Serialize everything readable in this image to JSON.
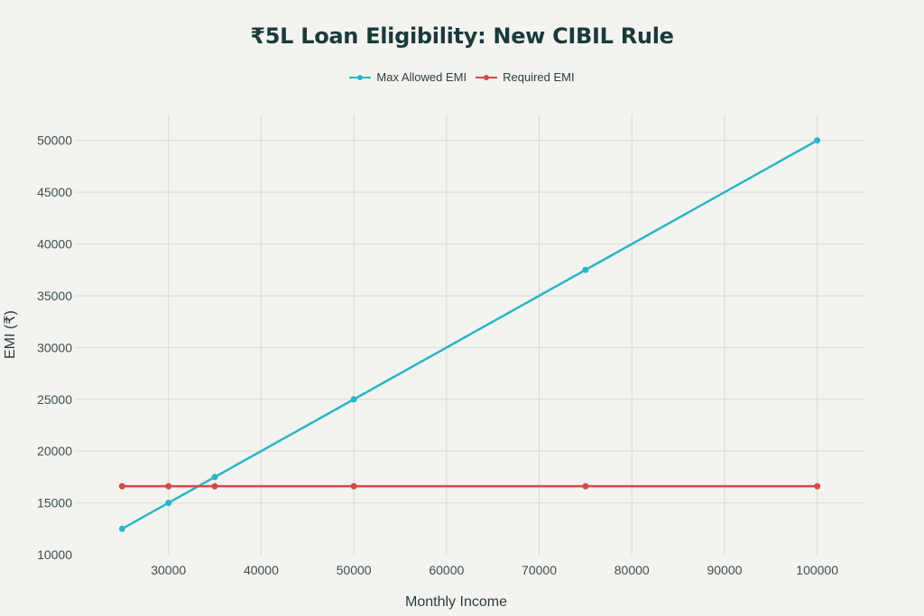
{
  "chart_data": {
    "type": "line",
    "title": "₹5L Loan Eligibility: New CIBIL Rule",
    "xlabel": "Monthly Income",
    "ylabel": "EMI (₹)",
    "xlim": [
      20000,
      105000
    ],
    "ylim": [
      10000,
      52500
    ],
    "x_ticks": [
      30000,
      40000,
      50000,
      60000,
      70000,
      80000,
      90000,
      100000
    ],
    "y_ticks": [
      10000,
      15000,
      20000,
      25000,
      30000,
      35000,
      40000,
      45000,
      50000
    ],
    "grid": true,
    "legend_position": "top-center",
    "series": [
      {
        "name": "Max Allowed EMI",
        "color": "#2cb5c8",
        "x": [
          25000,
          30000,
          35000,
          50000,
          75000,
          100000
        ],
        "y": [
          12500,
          15000,
          17500,
          25000,
          37500,
          50000
        ]
      },
      {
        "name": "Required EMI",
        "color": "#d24b47",
        "x": [
          25000,
          30000,
          35000,
          50000,
          75000,
          100000
        ],
        "y": [
          16607,
          16607,
          16607,
          16607,
          16607,
          16607
        ]
      }
    ]
  }
}
